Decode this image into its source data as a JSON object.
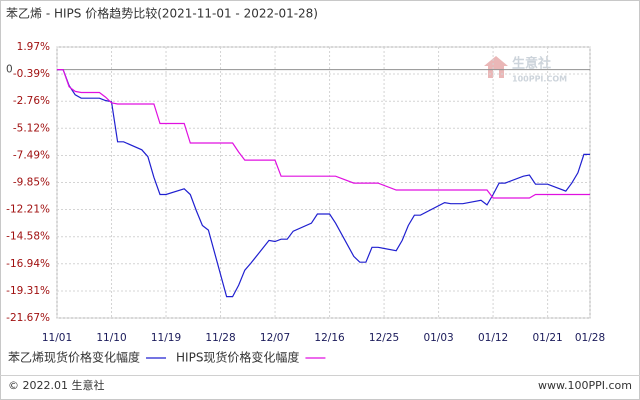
{
  "chart_data": {
    "type": "line",
    "title": "苯乙烯 - HIPS 价格趋势比较(2021-11-01 - 2022-01-28)",
    "watermark": [
      "生意社",
      "100PPI.COM"
    ],
    "x": [
      "11/01",
      "11/02",
      "11/03",
      "11/04",
      "11/05",
      "11/08",
      "11/09",
      "11/10",
      "11/11",
      "11/12",
      "11/15",
      "11/16",
      "11/17",
      "11/18",
      "11/19",
      "11/22",
      "11/23",
      "11/24",
      "11/25",
      "11/26",
      "11/29",
      "11/30",
      "12/01",
      "12/02",
      "12/03",
      "12/06",
      "12/07",
      "12/08",
      "12/09",
      "12/10",
      "12/13",
      "12/14",
      "12/15",
      "12/16",
      "12/17",
      "12/20",
      "12/21",
      "12/22",
      "12/23",
      "12/24",
      "12/27",
      "12/28",
      "12/29",
      "12/30",
      "12/31",
      "01/04",
      "01/05",
      "01/06",
      "01/07",
      "01/10",
      "01/11",
      "01/12",
      "01/13",
      "01/14",
      "01/17",
      "01/18",
      "01/19",
      "01/20",
      "01/21",
      "01/24",
      "01/25",
      "01/26",
      "01/27",
      "01/28"
    ],
    "series": [
      {
        "name": "苯乙烯现货价格变化幅度",
        "color": "#2020d0",
        "values": [
          0,
          0,
          -1.4,
          -2.2,
          -2.5,
          -2.5,
          -2.7,
          -2.8,
          -6.3,
          -6.3,
          -7.0,
          -7.6,
          -9.4,
          -10.9,
          -10.9,
          -10.4,
          -10.9,
          -12.3,
          -13.6,
          -14.0,
          -19.8,
          -19.8,
          -18.8,
          -17.5,
          -16.9,
          -14.9,
          -15.0,
          -14.8,
          -14.8,
          -14.1,
          -13.4,
          -12.6,
          -12.6,
          -12.6,
          -13.4,
          -16.3,
          -16.8,
          -16.8,
          -15.5,
          -15.5,
          -15.8,
          -14.9,
          -13.6,
          -12.7,
          -12.7,
          -11.6,
          -11.7,
          -11.7,
          -11.7,
          -11.4,
          -11.8,
          -10.9,
          -9.9,
          -9.9,
          -9.3,
          -9.2,
          -10.0,
          -10.0,
          -10.0,
          -10.6,
          -9.9,
          -9.0,
          -7.4,
          -7.4
        ]
      },
      {
        "name": "HIPS现货价格变化幅度",
        "color": "#e010e0",
        "values": [
          0,
          0,
          -1.5,
          -1.9,
          -2.0,
          -2.0,
          -2.4,
          -2.9,
          -3.0,
          -3.0,
          -3.0,
          -3.0,
          -3.0,
          -4.7,
          -4.7,
          -4.7,
          -6.4,
          -6.4,
          -6.4,
          -6.4,
          -6.4,
          -6.4,
          -7.2,
          -7.9,
          -7.9,
          -7.9,
          -7.9,
          -9.3,
          -9.3,
          -9.3,
          -9.3,
          -9.3,
          -9.3,
          -9.3,
          -9.3,
          -9.9,
          -9.9,
          -9.9,
          -9.9,
          -9.9,
          -10.5,
          -10.5,
          -10.5,
          -10.5,
          -10.5,
          -10.5,
          -10.5,
          -10.5,
          -10.5,
          -10.5,
          -10.5,
          -11.2,
          -11.2,
          -11.2,
          -11.2,
          -11.2,
          -10.9,
          -10.9,
          -10.9,
          -10.9,
          -10.9,
          -10.9,
          -10.9,
          -10.9
        ]
      }
    ],
    "xlim": [
      "11/01",
      "01/28"
    ],
    "xticks": [
      "11/01",
      "11/10",
      "11/19",
      "11/28",
      "12/07",
      "12/16",
      "12/25",
      "01/03",
      "01/12",
      "01/21",
      "01/28"
    ],
    "ylim": [
      -21.67,
      1.97
    ],
    "yticks": [
      {
        "value": 1.97,
        "label": "1.97%"
      },
      {
        "value": -0.39,
        "label": "-0.39%"
      },
      {
        "value": -2.76,
        "label": "-2.76%"
      },
      {
        "value": -5.12,
        "label": "-5.12%"
      },
      {
        "value": -7.49,
        "label": "-7.49%"
      },
      {
        "value": -9.85,
        "label": "-9.85%"
      },
      {
        "value": -12.21,
        "label": "-12.21%"
      },
      {
        "value": -14.58,
        "label": "-14.58%"
      },
      {
        "value": -16.94,
        "label": "-16.94%"
      },
      {
        "value": -19.31,
        "label": "-19.31%"
      },
      {
        "value": -21.67,
        "label": "-21.67%"
      }
    ],
    "reference_line": 0,
    "grid": true,
    "legend": "bottom"
  },
  "footer": {
    "left": "© 2022.01 生意社",
    "right": "www.100PPI.com"
  }
}
